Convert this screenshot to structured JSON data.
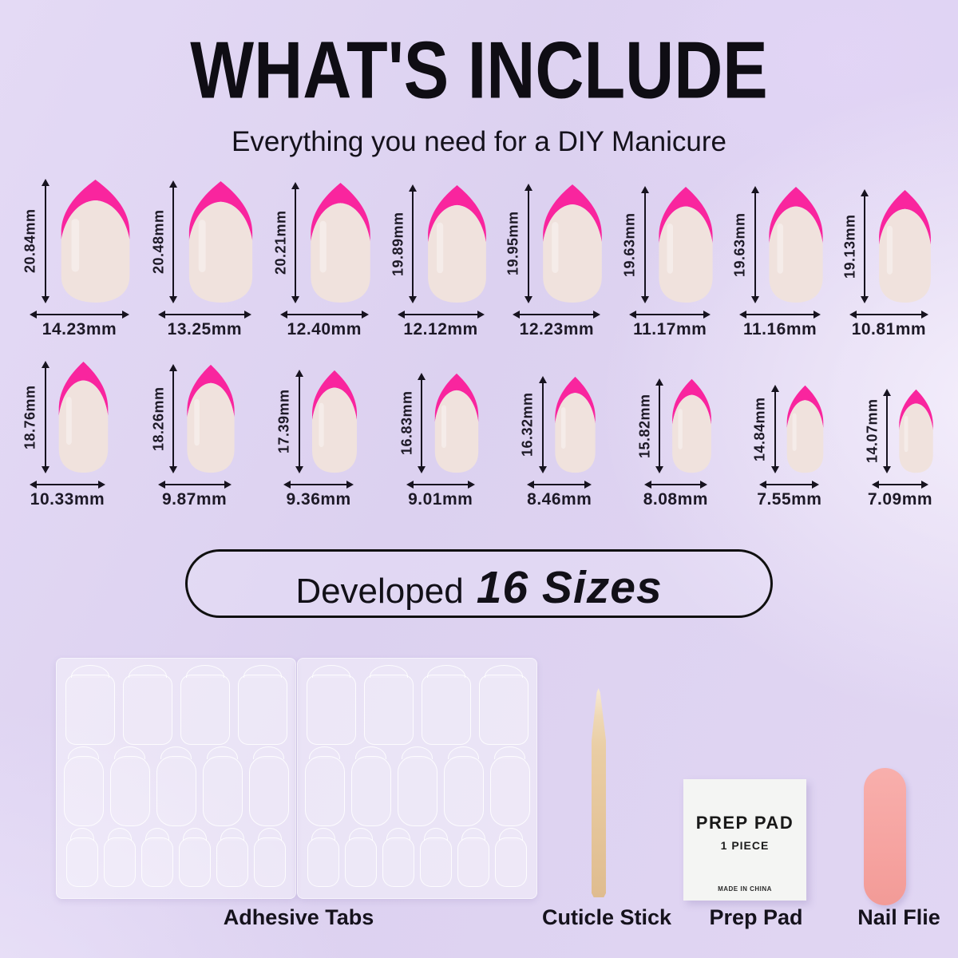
{
  "header": {
    "title": "WHAT'S INCLUDE",
    "subtitle": "Everything you need for a DIY Manicure"
  },
  "sizes_banner": {
    "prefix": "Developed",
    "emphasis": "16 Sizes"
  },
  "nails": {
    "unit": "mm",
    "rows": [
      [
        {
          "length_label": "20.84mm",
          "width_label": "14.23mm",
          "length_mm": 20.84,
          "width_mm": 14.23
        },
        {
          "length_label": "20.48mm",
          "width_label": "13.25mm",
          "length_mm": 20.48,
          "width_mm": 13.25
        },
        {
          "length_label": "20.21mm",
          "width_label": "12.40mm",
          "length_mm": 20.21,
          "width_mm": 12.4
        },
        {
          "length_label": "19.89mm",
          "width_label": "12.12mm",
          "length_mm": 19.89,
          "width_mm": 12.12
        },
        {
          "length_label": "19.95mm",
          "width_label": "12.23mm",
          "length_mm": 19.95,
          "width_mm": 12.23
        },
        {
          "length_label": "19.63mm",
          "width_label": "11.17mm",
          "length_mm": 19.63,
          "width_mm": 11.17
        },
        {
          "length_label": "19.63mm",
          "width_label": "11.16mm",
          "length_mm": 19.63,
          "width_mm": 11.16
        },
        {
          "length_label": "19.13mm",
          "width_label": "10.81mm",
          "length_mm": 19.13,
          "width_mm": 10.81
        }
      ],
      [
        {
          "length_label": "18.76mm",
          "width_label": "10.33mm",
          "length_mm": 18.76,
          "width_mm": 10.33
        },
        {
          "length_label": "18.26mm",
          "width_label": "9.87mm",
          "length_mm": 18.26,
          "width_mm": 9.87
        },
        {
          "length_label": "17.39mm",
          "width_label": "9.36mm",
          "length_mm": 17.39,
          "width_mm": 9.36
        },
        {
          "length_label": "16.83mm",
          "width_label": "9.01mm",
          "length_mm": 16.83,
          "width_mm": 9.01
        },
        {
          "length_label": "16.32mm",
          "width_label": "8.46mm",
          "length_mm": 16.32,
          "width_mm": 8.46
        },
        {
          "length_label": "15.82mm",
          "width_label": "8.08mm",
          "length_mm": 15.82,
          "width_mm": 8.08
        },
        {
          "length_label": "14.84mm",
          "width_label": "7.55mm",
          "length_mm": 14.84,
          "width_mm": 7.55
        },
        {
          "length_label": "14.07mm",
          "width_label": "7.09mm",
          "length_mm": 14.07,
          "width_mm": 7.09
        }
      ]
    ]
  },
  "kit": {
    "labels": [
      "Adhesive Tabs",
      "Cuticle Stick",
      "Prep Pad",
      "Nail Flie"
    ],
    "prep_pad": {
      "title": "PREP PAD",
      "pieces": "1 PIECE",
      "origin": "MADE IN CHINA"
    },
    "adhesive_sheets": {
      "sheet_count": 2,
      "tabs_per_row": [
        4,
        5,
        6
      ]
    }
  },
  "colors": {
    "background": "#ddd2ef",
    "tip_pink": "#F9259E",
    "nail_base": "#F0E2DD",
    "ink": "#17131F",
    "file_pink": "#F7A7A4",
    "stick_tan": "#EACDA4",
    "pad_white": "#F4F5F3"
  }
}
